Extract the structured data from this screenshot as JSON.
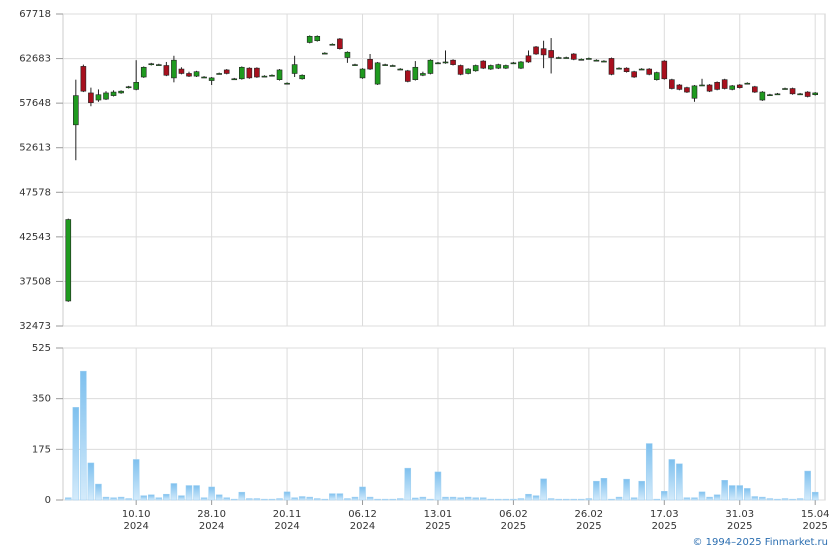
{
  "chart_data": [
    {
      "type": "candlestick",
      "ylim": [
        32473,
        67718
      ],
      "yticks": [
        32473,
        37508,
        42543,
        47578,
        52613,
        57648,
        62683,
        67718
      ],
      "xlim": [
        -0.7,
        100.3
      ],
      "grid": true,
      "up_color": "#1f9a1f",
      "down_color": "#a8101e",
      "open": [
        35300,
        55200,
        61800,
        58800,
        58000,
        58100,
        58500,
        58800,
        59400,
        59200,
        60600,
        62000,
        62000,
        61900,
        60500,
        61500,
        61000,
        60700,
        60600,
        60200,
        61000,
        61400,
        60400,
        60400,
        61600,
        61600,
        60700,
        60800,
        60300,
        59900,
        61000,
        60400,
        64500,
        64700,
        63300,
        64300,
        64900,
        62800,
        62000,
        60500,
        62600,
        59800,
        62000,
        61900,
        61500,
        61300,
        60300,
        60800,
        61000,
        62200,
        62200,
        62500,
        61900,
        61000,
        61300,
        62400,
        61500,
        61600,
        61600,
        62200,
        61600,
        63000,
        64000,
        63800,
        63600,
        62800,
        62800,
        63200,
        62600,
        62700,
        62500,
        62400,
        62700,
        61600,
        61600,
        61200,
        61500,
        61500,
        60300,
        62400,
        60300,
        59700,
        59400,
        58200,
        59700,
        59700,
        60000,
        60300,
        59200,
        59700,
        59900,
        59500,
        58000,
        58600,
        58700,
        59300,
        59300,
        58700,
        58900,
        58600
      ],
      "high": [
        44600,
        60300,
        62000,
        59400,
        59200,
        59000,
        59100,
        59100,
        59600,
        62500,
        61800,
        62200,
        62100,
        62300,
        63000,
        61700,
        61200,
        61300,
        60700,
        60600,
        61100,
        61500,
        60500,
        61800,
        61700,
        61700,
        60800,
        60900,
        61500,
        60000,
        63000,
        60900,
        65300,
        65300,
        63400,
        64400,
        65000,
        63500,
        62100,
        61600,
        63200,
        62300,
        62100,
        62000,
        61600,
        61400,
        62400,
        61200,
        62600,
        62300,
        63600,
        62600,
        62000,
        61600,
        62000,
        62500,
        62000,
        62100,
        62000,
        62300,
        62400,
        63600,
        64100,
        64700,
        65000,
        62900,
        62900,
        63300,
        62700,
        62800,
        62600,
        62500,
        62800,
        61700,
        61700,
        61300,
        61600,
        61600,
        61200,
        62500,
        60400,
        59800,
        59500,
        59700,
        60400,
        59800,
        60100,
        60400,
        59700,
        59800,
        60000,
        59600,
        59000,
        58700,
        58800,
        59400,
        59400,
        58800,
        59000,
        58900
      ],
      "low": [
        35200,
        51200,
        58900,
        57300,
        57800,
        58000,
        58400,
        58700,
        59300,
        59100,
        60500,
        61900,
        61900,
        60700,
        60000,
        60900,
        60600,
        60600,
        60500,
        59700,
        60900,
        60900,
        60300,
        60300,
        60400,
        60500,
        60600,
        60700,
        60200,
        59800,
        60600,
        60300,
        64400,
        64600,
        63200,
        64200,
        63700,
        62200,
        61900,
        60400,
        61400,
        59700,
        61900,
        61800,
        61400,
        60000,
        60200,
        60700,
        60900,
        62100,
        62100,
        61900,
        60800,
        60900,
        61200,
        61500,
        61400,
        61500,
        61500,
        62100,
        61500,
        62200,
        63100,
        61600,
        61000,
        62700,
        62700,
        62500,
        62500,
        62600,
        62400,
        62300,
        60800,
        61500,
        61100,
        60500,
        61400,
        60800,
        60200,
        60300,
        59200,
        59100,
        58800,
        57800,
        59600,
        58900,
        59100,
        59200,
        59100,
        59300,
        59800,
        58800,
        57900,
        58500,
        58600,
        59200,
        58600,
        58600,
        58300,
        58500
      ],
      "close": [
        44500,
        58500,
        59000,
        57700,
        58600,
        58800,
        58900,
        59000,
        59500,
        60000,
        61700,
        62100,
        62000,
        60800,
        62500,
        61000,
        60700,
        61200,
        60600,
        60500,
        61000,
        61000,
        60400,
        61700,
        60500,
        60600,
        60700,
        60800,
        61400,
        59900,
        62000,
        60800,
        65200,
        65200,
        63300,
        64300,
        63800,
        63400,
        62000,
        61500,
        61500,
        62200,
        62000,
        61900,
        61500,
        60100,
        61700,
        61000,
        62500,
        62200,
        62300,
        62000,
        60900,
        61500,
        61900,
        61600,
        61900,
        62000,
        61900,
        62200,
        62300,
        62300,
        63200,
        63100,
        62800,
        62800,
        62800,
        62600,
        62600,
        62700,
        62500,
        62400,
        60900,
        61600,
        61200,
        60600,
        61500,
        60900,
        61100,
        60400,
        59300,
        59200,
        58900,
        59600,
        59700,
        59000,
        59200,
        59300,
        59600,
        59400,
        59900,
        58900,
        58900,
        58600,
        58700,
        59300,
        58700,
        58700,
        58400,
        58800
      ]
    },
    {
      "type": "bar",
      "color": "#9fd0f2",
      "ylim": [
        0,
        525
      ],
      "yticks": [
        0,
        175,
        350,
        525
      ],
      "xlim": [
        -0.7,
        100.3
      ],
      "grid": true,
      "xticks": [
        {
          "value": 9,
          "label": [
            "10.10",
            "2024"
          ]
        },
        {
          "value": 19,
          "label": [
            "28.10",
            "2024"
          ]
        },
        {
          "value": 29,
          "label": [
            "20.11",
            "2024"
          ]
        },
        {
          "value": 39,
          "label": [
            "06.12",
            "2024"
          ]
        },
        {
          "value": 49,
          "label": [
            "13.01",
            "2025"
          ]
        },
        {
          "value": 59,
          "label": [
            "06.02",
            "2025"
          ]
        },
        {
          "value": 69,
          "label": [
            "26.02",
            "2025"
          ]
        },
        {
          "value": 79,
          "label": [
            "17.03",
            "2025"
          ]
        },
        {
          "value": 89,
          "label": [
            "31.03",
            "2025"
          ]
        },
        {
          "value": 99,
          "label": [
            "15.04",
            "2025"
          ]
        }
      ],
      "values": [
        8,
        320,
        445,
        128,
        55,
        10,
        8,
        10,
        5,
        140,
        15,
        18,
        8,
        20,
        57,
        15,
        50,
        50,
        8,
        45,
        18,
        8,
        3,
        27,
        5,
        5,
        3,
        3,
        5,
        28,
        8,
        12,
        10,
        5,
        3,
        22,
        22,
        5,
        10,
        45,
        10,
        3,
        3,
        3,
        5,
        110,
        7,
        10,
        3,
        97,
        10,
        10,
        8,
        10,
        8,
        8,
        3,
        3,
        3,
        3,
        5,
        20,
        15,
        73,
        5,
        3,
        3,
        3,
        3,
        5,
        65,
        75,
        3,
        10,
        72,
        8,
        65,
        195,
        3,
        30,
        140,
        125,
        8,
        8,
        28,
        10,
        18,
        68,
        50,
        50,
        40,
        12,
        10,
        5,
        3,
        5,
        3,
        5,
        100,
        27
      ]
    }
  ],
  "footer": "© 1994–2025 Finmarket.ru"
}
